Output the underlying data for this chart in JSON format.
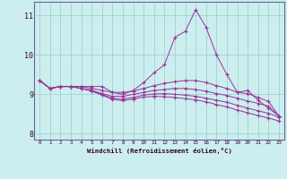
{
  "xlabel": "Windchill (Refroidissement éolien,°C)",
  "background_color": "#cceeee",
  "line_color": "#993399",
  "grid_color": "#99cccc",
  "axis_color": "#666699",
  "xlim": [
    -0.5,
    23.5
  ],
  "ylim": [
    7.85,
    11.35
  ],
  "x_ticks": [
    0,
    1,
    2,
    3,
    4,
    5,
    6,
    7,
    8,
    9,
    10,
    11,
    12,
    13,
    14,
    15,
    16,
    17,
    18,
    19,
    20,
    21,
    22,
    23
  ],
  "y_ticks": [
    8,
    9,
    10,
    11
  ],
  "lines": [
    [
      9.35,
      9.15,
      9.2,
      9.2,
      9.2,
      9.2,
      9.2,
      9.05,
      9.0,
      9.1,
      9.3,
      9.55,
      9.75,
      10.45,
      10.6,
      11.15,
      10.7,
      10.0,
      9.5,
      9.05,
      9.1,
      8.85,
      8.65,
      8.45
    ],
    [
      9.35,
      9.15,
      9.2,
      9.2,
      9.2,
      9.15,
      9.1,
      9.05,
      9.05,
      9.08,
      9.15,
      9.22,
      9.28,
      9.32,
      9.35,
      9.35,
      9.3,
      9.22,
      9.15,
      9.05,
      9.02,
      8.92,
      8.82,
      8.45
    ],
    [
      9.35,
      9.15,
      9.2,
      9.2,
      9.15,
      9.1,
      9.02,
      8.95,
      8.95,
      9.0,
      9.05,
      9.1,
      9.12,
      9.15,
      9.15,
      9.12,
      9.08,
      9.02,
      8.97,
      8.9,
      8.83,
      8.77,
      8.7,
      8.45
    ],
    [
      9.35,
      9.15,
      9.2,
      9.2,
      9.15,
      9.1,
      9.0,
      8.9,
      8.88,
      8.92,
      8.98,
      9.01,
      9.02,
      9.0,
      8.98,
      8.95,
      8.9,
      8.85,
      8.8,
      8.72,
      8.65,
      8.58,
      8.52,
      8.42
    ],
    [
      9.35,
      9.15,
      9.2,
      9.2,
      9.15,
      9.08,
      8.98,
      8.87,
      8.84,
      8.88,
      8.93,
      8.95,
      8.94,
      8.92,
      8.89,
      8.86,
      8.81,
      8.74,
      8.68,
      8.6,
      8.53,
      8.46,
      8.4,
      8.32
    ]
  ]
}
